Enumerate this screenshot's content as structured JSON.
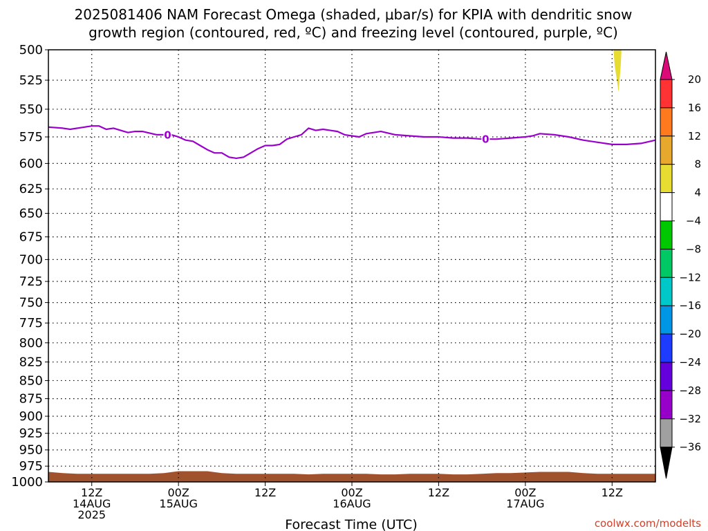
{
  "title_line1": "2025081406 NAM Forecast Omega (shaded, μbar/s) for KPIA with dendritic snow",
  "title_line2": "growth region (contoured, red, ºC) and freezing level (contoured, purple, ºC)",
  "xlabel": "Forecast Time (UTC)",
  "credit": "coolwx.com/modelts",
  "chart_data": {
    "type": "line",
    "title": "2025081406 NAM Forecast Omega (shaded, μbar/s) for KPIA with dendritic snow growth region (contoured, red, ºC) and freezing level (contoured, purple, ºC)",
    "xlabel": "Forecast Time (UTC)",
    "ylabel": "",
    "y_scale": "log-pressure (inverted)",
    "ylim": [
      1000,
      500
    ],
    "xlim": [
      6,
      90
    ],
    "grid": true,
    "y_ticks": [
      500,
      525,
      550,
      575,
      600,
      625,
      650,
      675,
      700,
      725,
      750,
      775,
      800,
      825,
      850,
      875,
      900,
      925,
      950,
      975,
      1000
    ],
    "x_ticks": [
      {
        "hour": 12,
        "lines": [
          "12Z",
          "14AUG",
          "2025"
        ]
      },
      {
        "hour": 24,
        "lines": [
          "00Z",
          "15AUG"
        ]
      },
      {
        "hour": 36,
        "lines": [
          "12Z"
        ]
      },
      {
        "hour": 48,
        "lines": [
          "00Z",
          "16AUG"
        ]
      },
      {
        "hour": 60,
        "lines": [
          "12Z"
        ]
      },
      {
        "hour": 72,
        "lines": [
          "00Z",
          "17AUG"
        ]
      },
      {
        "hour": 84,
        "lines": [
          "12Z"
        ]
      }
    ],
    "series": [
      {
        "name": "freezing level",
        "contour_label": "0",
        "color": "#9a00cc",
        "x": [
          6,
          8,
          9,
          11,
          12,
          13,
          14,
          15,
          17,
          18,
          19,
          21,
          22,
          23,
          24,
          25,
          26,
          27,
          28,
          29,
          30,
          31,
          32,
          33,
          34,
          35,
          36,
          37,
          38,
          39,
          40,
          41,
          42,
          43,
          44,
          45,
          46,
          47,
          48,
          49,
          50,
          51,
          52,
          54,
          56,
          58,
          60,
          62,
          64,
          66,
          68,
          70,
          72,
          73,
          74,
          76,
          78,
          80,
          82,
          84,
          86,
          88,
          90
        ],
        "y": [
          566,
          567,
          568,
          566,
          565,
          565,
          568,
          567,
          571,
          570,
          570,
          573,
          573,
          573,
          575,
          578,
          579,
          583,
          587,
          590,
          590,
          594,
          595,
          594,
          590,
          586,
          583,
          583,
          582,
          577,
          575,
          573,
          567,
          569,
          568,
          569,
          570,
          573,
          574,
          575,
          572,
          571,
          570,
          573,
          574,
          575,
          575,
          576,
          576,
          577,
          577,
          576,
          575,
          574,
          572,
          573,
          575,
          578,
          580,
          582,
          582,
          581,
          578
        ]
      }
    ],
    "omega_shading": [
      {
        "value_range": [
          4,
          8
        ],
        "color": "#e6dc32",
        "region": "top-right near 12Z 17AUG, 500-535 hPa"
      }
    ],
    "colorbar": {
      "levels": [
        20,
        16,
        12,
        8,
        4,
        -4,
        -8,
        -12,
        -16,
        -20,
        -24,
        -28,
        -32,
        -36
      ],
      "colors": [
        "#dc0a78",
        "#ff3333",
        "#ff7a1f",
        "#e6a82d",
        "#e6dc32",
        "#ffffff",
        "#00c800",
        "#00c864",
        "#00c8c8",
        "#0096e6",
        "#1e3cff",
        "#6400dc",
        "#9600c8",
        "#a0a0a0",
        "#000000"
      ]
    },
    "terrain_color": "#a0522d"
  }
}
